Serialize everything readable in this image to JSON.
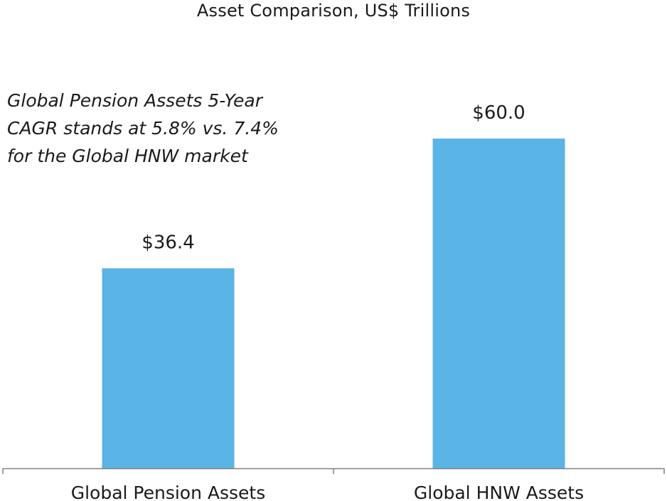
{
  "chart_data": {
    "type": "bar",
    "title": "Asset Comparison, US$ Trillions",
    "annotation": "Global Pension Assets 5-Year\nCAGR stands at 5.8% vs. 7.4%\nfor the Global HNW market",
    "categories": [
      "Global Pension Assets",
      "Global HNW Assets"
    ],
    "values": [
      36.4,
      60.0
    ],
    "data_labels": [
      "$36.4",
      "$60.0"
    ],
    "bar_color": "#5ab4e6",
    "axis_color": "#808080",
    "ylim": [
      0,
      74
    ],
    "grid": false,
    "legend": "none",
    "xlabel": "",
    "ylabel": ""
  }
}
